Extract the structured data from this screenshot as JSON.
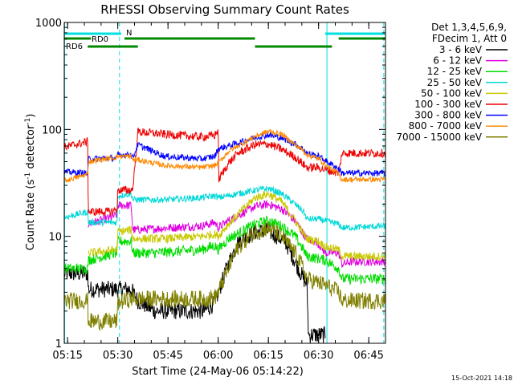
{
  "chart_data": {
    "type": "line",
    "title": "RHESSI Observing Summary Count Rates",
    "xlabel": "Start Time (24-May-06 05:14:22)",
    "ylabel": "Count Rate (s⁻¹ detector⁻¹)",
    "ylabel_parts": {
      "base": "Count Rate (s",
      "exp1": "-1",
      "mid": " detector",
      "exp2": "-1",
      "close": ")"
    },
    "y_scale": "log",
    "ylim": [
      1,
      1000
    ],
    "xlim_minutes": [
      0,
      96
    ],
    "x_ticks": [
      {
        "t": 1,
        "label": "05:15"
      },
      {
        "t": 16,
        "label": "05:30"
      },
      {
        "t": 31,
        "label": "05:45"
      },
      {
        "t": 46,
        "label": "06:00"
      },
      {
        "t": 61,
        "label": "06:15"
      },
      {
        "t": 76,
        "label": "06:30"
      },
      {
        "t": 91,
        "label": "06:45"
      }
    ],
    "y_ticks": [
      {
        "v": 1,
        "label": "1"
      },
      {
        "v": 10,
        "label": "10"
      },
      {
        "v": 100,
        "label": "100"
      },
      {
        "v": 1000,
        "label": "1000"
      }
    ],
    "info": [
      "Det 1,3,4,5,6,9,",
      "FDecim 1, Att 0"
    ],
    "legend_position": "right",
    "timestamp": "15-Oct-2021 14:18",
    "flags": [
      {
        "label": "N",
        "color": "#00e0e0",
        "segments": [
          [
            0,
            17
          ],
          [
            78,
            96
          ]
        ]
      },
      {
        "label": "RD0",
        "color": "#008800",
        "segments": [
          [
            0,
            8
          ],
          [
            18,
            57
          ],
          [
            82,
            96
          ]
        ]
      },
      {
        "label": "RD6",
        "color": "#008800",
        "segments": [
          [
            7,
            22
          ],
          [
            57,
            80
          ]
        ]
      }
    ],
    "vlines": [
      {
        "t": 0.1,
        "color": "#00e0e0",
        "style": "solid"
      },
      {
        "t": 16.5,
        "color": "#00e0e0",
        "style": "dashed"
      },
      {
        "t": 78.5,
        "color": "#00e0e0",
        "style": "solid"
      },
      {
        "t": 95.5,
        "color": "#00e0e0",
        "style": "dashed"
      }
    ],
    "series": [
      {
        "name": "3 - 6 keV",
        "color": "#000000",
        "points": [
          [
            0,
            4.5
          ],
          [
            7,
            4.5
          ],
          [
            7.2,
            3.2
          ],
          [
            16,
            3.2
          ],
          [
            20,
            3.2
          ],
          [
            22,
            2.5
          ],
          [
            27,
            2
          ],
          [
            37,
            2
          ],
          [
            42,
            2
          ],
          [
            45,
            2.4
          ],
          [
            49,
            5.5
          ],
          [
            52,
            9
          ],
          [
            57,
            11
          ],
          [
            61,
            11.2
          ],
          [
            66,
            9
          ],
          [
            69,
            5.8
          ],
          [
            71.5,
            4
          ],
          [
            72.5,
            3.6
          ],
          [
            73,
            1.2
          ],
          [
            78,
            1.2
          ]
        ],
        "noise": 0.08
      },
      {
        "name": "6 - 12 keV",
        "color": "#e000e0",
        "points": [
          [
            7,
            13
          ],
          [
            14,
            15
          ],
          [
            15.8,
            16
          ],
          [
            16,
            19.5
          ],
          [
            20,
            19.5
          ],
          [
            20.5,
            11.5
          ],
          [
            22,
            11.5
          ],
          [
            31,
            12
          ],
          [
            41,
            12.5
          ],
          [
            45,
            13.5
          ],
          [
            46,
            12
          ],
          [
            49,
            14
          ],
          [
            57,
            19
          ],
          [
            61,
            20
          ],
          [
            65,
            18
          ],
          [
            69,
            14
          ],
          [
            71.5,
            10.5
          ],
          [
            72.5,
            9.5
          ],
          [
            74,
            9
          ],
          [
            75,
            9
          ],
          [
            76,
            8.5
          ],
          [
            78,
            7
          ],
          [
            82,
            7
          ],
          [
            83,
            5.5
          ],
          [
            86,
            5.8
          ],
          [
            96,
            5.8
          ]
        ],
        "noise": 0.04
      },
      {
        "name": "12 - 25 keV",
        "color": "#00dd00",
        "points": [
          [
            0,
            5
          ],
          [
            7,
            5
          ],
          [
            7.2,
            6
          ],
          [
            14,
            6.8
          ],
          [
            15.8,
            7
          ],
          [
            16,
            9
          ],
          [
            20,
            9
          ],
          [
            20.5,
            7
          ],
          [
            27,
            7
          ],
          [
            41,
            7.5
          ],
          [
            45,
            8.2
          ],
          [
            46,
            7.5
          ],
          [
            49,
            9.5
          ],
          [
            57,
            13
          ],
          [
            61,
            14
          ],
          [
            65,
            12.5
          ],
          [
            69,
            10
          ],
          [
            71.5,
            7.5
          ],
          [
            72.5,
            6.5
          ],
          [
            78,
            6
          ],
          [
            82,
            5
          ],
          [
            83,
            4
          ],
          [
            96,
            4
          ]
        ],
        "noise": 0.05
      },
      {
        "name": "25 - 50 keV",
        "color": "#00d8d8",
        "points": [
          [
            0,
            15
          ],
          [
            7,
            17
          ],
          [
            7.2,
            13.5
          ],
          [
            15.8,
            13.5
          ],
          [
            16,
            24
          ],
          [
            20,
            25
          ],
          [
            20.5,
            22
          ],
          [
            22,
            22
          ],
          [
            31,
            22
          ],
          [
            41,
            23
          ],
          [
            45,
            24
          ],
          [
            46,
            23
          ],
          [
            49,
            24
          ],
          [
            57,
            27
          ],
          [
            61,
            28
          ],
          [
            65,
            25
          ],
          [
            69,
            20
          ],
          [
            71.5,
            17
          ],
          [
            72.5,
            14.5
          ],
          [
            76,
            14.5
          ],
          [
            78,
            14
          ],
          [
            82,
            13
          ],
          [
            83,
            12
          ],
          [
            96,
            12.5
          ]
        ],
        "noise": 0.03
      },
      {
        "name": "50 - 100 keV",
        "color": "#c8c800",
        "points": [
          [
            7.2,
            7
          ],
          [
            15.8,
            7.5
          ],
          [
            16,
            11
          ],
          [
            20,
            11.5
          ],
          [
            20.5,
            9.5
          ],
          [
            30,
            9.5
          ],
          [
            41,
            10
          ],
          [
            45,
            10.5
          ],
          [
            46,
            10
          ],
          [
            49,
            13
          ],
          [
            57,
            23
          ],
          [
            61,
            25
          ],
          [
            65,
            21
          ],
          [
            69,
            14
          ],
          [
            71.5,
            10.5
          ],
          [
            72.5,
            9.5
          ],
          [
            76,
            9
          ],
          [
            78,
            8
          ],
          [
            82,
            7.5
          ],
          [
            83,
            6.5
          ],
          [
            96,
            6.5
          ]
        ],
        "noise": 0.04
      },
      {
        "name": "100 - 300 keV",
        "color": "#ee0000",
        "points": [
          [
            0,
            68
          ],
          [
            7,
            77
          ],
          [
            7.2,
            17
          ],
          [
            14,
            17
          ],
          [
            15.8,
            18
          ],
          [
            16,
            27
          ],
          [
            20,
            27
          ],
          [
            20.5,
            28
          ],
          [
            22,
            95
          ],
          [
            30,
            90
          ],
          [
            41,
            85
          ],
          [
            45,
            88
          ],
          [
            46,
            100
          ],
          [
            46.2,
            34
          ],
          [
            49,
            48
          ],
          [
            52,
            60
          ],
          [
            57,
            72
          ],
          [
            61,
            73
          ],
          [
            65,
            65
          ],
          [
            69,
            55
          ],
          [
            71.5,
            47
          ],
          [
            72.5,
            44
          ],
          [
            76,
            44
          ],
          [
            78,
            42
          ],
          [
            82,
            39
          ],
          [
            83,
            60
          ],
          [
            96,
            60
          ]
        ],
        "noise": 0.04
      },
      {
        "name": "300 - 800 keV",
        "color": "#0000ff",
        "points": [
          [
            0,
            40
          ],
          [
            7,
            39
          ],
          [
            7.2,
            53
          ],
          [
            15.8,
            54
          ],
          [
            16,
            58
          ],
          [
            20,
            58
          ],
          [
            20.5,
            54
          ],
          [
            22,
            72
          ],
          [
            30,
            56
          ],
          [
            41,
            53
          ],
          [
            45,
            56
          ],
          [
            46,
            66
          ],
          [
            49,
            70
          ],
          [
            57,
            84
          ],
          [
            61,
            89
          ],
          [
            65,
            83
          ],
          [
            69,
            73
          ],
          [
            71.5,
            65
          ],
          [
            72.5,
            60
          ],
          [
            76,
            56
          ],
          [
            78,
            51
          ],
          [
            82,
            43
          ],
          [
            83,
            39
          ],
          [
            96,
            39
          ]
        ],
        "noise": 0.03
      },
      {
        "name": "800 - 7000 keV",
        "color": "#ff8800",
        "points": [
          [
            0,
            33
          ],
          [
            7,
            38
          ],
          [
            7.2,
            50
          ],
          [
            15.8,
            55
          ],
          [
            16,
            56
          ],
          [
            20,
            56
          ],
          [
            20.5,
            52
          ],
          [
            22,
            52
          ],
          [
            30,
            46
          ],
          [
            41,
            44
          ],
          [
            45,
            46
          ],
          [
            46,
            48
          ],
          [
            49,
            62
          ],
          [
            57,
            86
          ],
          [
            61,
            96
          ],
          [
            65,
            90
          ],
          [
            69,
            72
          ],
          [
            71.5,
            63
          ],
          [
            72.5,
            58
          ],
          [
            76,
            53
          ],
          [
            78,
            47
          ],
          [
            82,
            38
          ],
          [
            83,
            34
          ],
          [
            96,
            34
          ]
        ],
        "noise": 0.025
      },
      {
        "name": "7000 - 15000 keV",
        "color": "#808000",
        "points": [
          [
            0,
            2.5
          ],
          [
            7,
            2.5
          ],
          [
            7.2,
            1.6
          ],
          [
            15.8,
            1.6
          ],
          [
            16,
            2.4
          ],
          [
            20,
            2.6
          ],
          [
            22,
            2.6
          ],
          [
            37,
            2.6
          ],
          [
            42,
            2.6
          ],
          [
            45,
            2.7
          ],
          [
            46,
            3
          ],
          [
            49,
            5
          ],
          [
            52,
            8
          ],
          [
            57,
            11
          ],
          [
            61,
            12
          ],
          [
            65,
            10
          ],
          [
            69,
            7
          ],
          [
            71.5,
            5
          ],
          [
            72.5,
            4
          ],
          [
            78,
            3.5
          ],
          [
            82,
            3
          ],
          [
            83,
            2.5
          ],
          [
            96,
            2.5
          ]
        ],
        "noise": 0.08
      }
    ]
  }
}
